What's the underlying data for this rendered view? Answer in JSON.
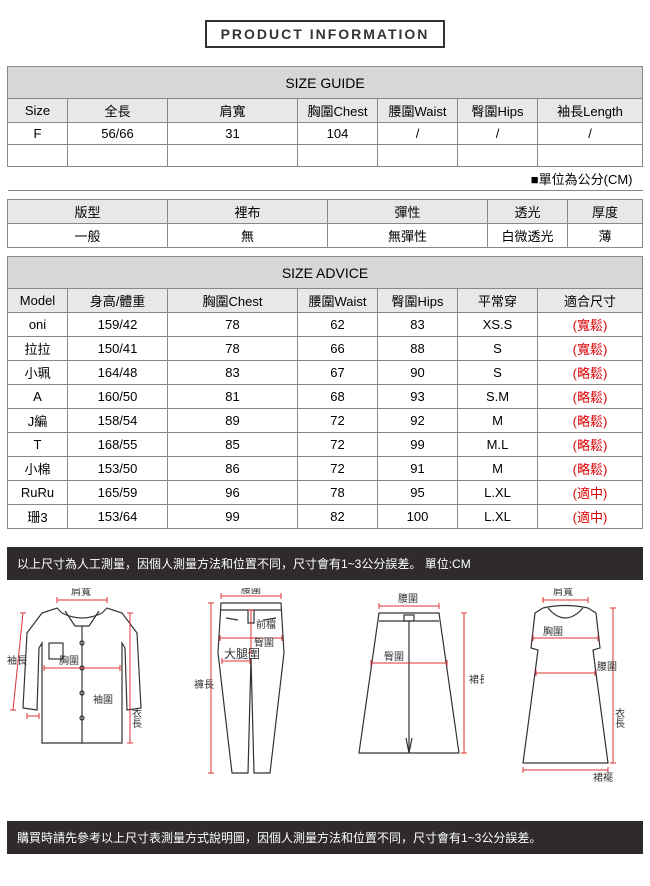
{
  "title": "PRODUCT INFORMATION",
  "sizeGuide": {
    "heading": "SIZE GUIDE",
    "columns": [
      "Size",
      "全長",
      "肩寬",
      "胸圍Chest",
      "腰圍Waist",
      "臀圍Hips",
      "袖長Length"
    ],
    "row": [
      "F",
      "56/66",
      "31",
      "104",
      "/",
      "/",
      "/"
    ],
    "unitNote": "■單位為公分(CM)"
  },
  "fabric": {
    "columns": [
      "版型",
      "裡布",
      "彈性",
      "透光",
      "厚度"
    ],
    "row": [
      "一般",
      "無",
      "無彈性",
      "白微透光",
      "薄"
    ]
  },
  "sizeAdvice": {
    "heading": "SIZE ADVICE",
    "columns": [
      "Model",
      "身高/體重",
      "胸圍Chest",
      "腰圍Waist",
      "臀圍Hips",
      "平常穿",
      "適合尺寸"
    ],
    "rows": [
      [
        "oni",
        "159/42",
        "78",
        "62",
        "83",
        "XS.S",
        "(寬鬆)"
      ],
      [
        "拉拉",
        "150/41",
        "78",
        "66",
        "88",
        "S",
        "(寬鬆)"
      ],
      [
        "小珮",
        "164/48",
        "83",
        "67",
        "90",
        "S",
        "(略鬆)"
      ],
      [
        "A",
        "160/50",
        "81",
        "68",
        "93",
        "S.M",
        "(略鬆)"
      ],
      [
        "J編",
        "158/54",
        "89",
        "72",
        "92",
        "M",
        "(略鬆)"
      ],
      [
        "T",
        "168/55",
        "85",
        "72",
        "99",
        "M.L",
        "(略鬆)"
      ],
      [
        "小棉",
        "153/50",
        "86",
        "72",
        "91",
        "M",
        "(略鬆)"
      ],
      [
        "RuRu",
        "165/59",
        "96",
        "78",
        "95",
        "L.XL",
        "(適中)"
      ],
      [
        "珊3",
        "153/64",
        "99",
        "82",
        "100",
        "L.XL",
        "(適中)"
      ]
    ]
  },
  "note1": "以上尺寸為人工測量，因個人測量方法和位置不同，尺寸會有1~3公分誤差。 單位:CM",
  "note2": "購買時請先參考以上尺寸表測量方式說明圖，因個人測量方法和位置不同，尺寸會有1~3公分誤差。",
  "diagramLabels": {
    "shirt": {
      "shoulder": "肩寬",
      "chest": "胸圍",
      "sleeve": "袖長",
      "cuff": "袖圍",
      "length": "衣長"
    },
    "pants": {
      "waist": "腰圍",
      "front": "前檔",
      "hip": "臀圍",
      "thigh": "大腿圍",
      "length": "褲長"
    },
    "skirt": {
      "waist": "腰圍",
      "hip": "臀圍",
      "length": "裙長"
    },
    "dress": {
      "shoulder": "肩寬",
      "chest": "胸圍",
      "waist": "腰圍",
      "length": "衣長",
      "hem": "裙襬"
    }
  }
}
